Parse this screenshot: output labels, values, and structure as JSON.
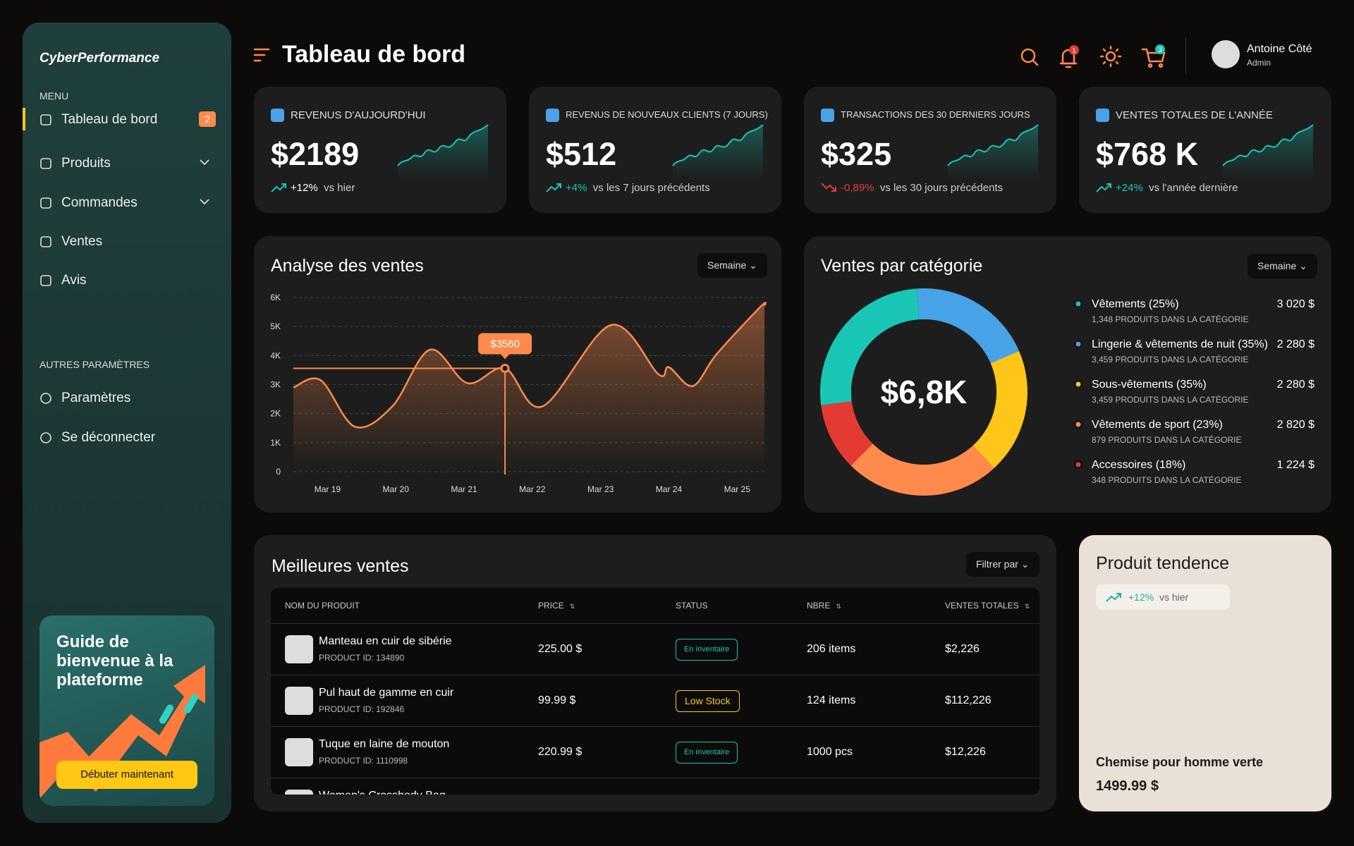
{
  "sidebar": {
    "brand": "CyberPerformance",
    "menu_label": "MENU",
    "menu": [
      {
        "label": "Tableau de bord",
        "badge": 2,
        "active": true
      },
      {
        "label": "Produits",
        "expandable": true
      },
      {
        "label": "Commandes",
        "expandable": true
      },
      {
        "label": "Ventes"
      },
      {
        "label": "Avis"
      }
    ],
    "settings_label": "AUTRES PARAMÈTRES",
    "settings": [
      "Paramètres",
      "Se déconnecter"
    ],
    "promo": {
      "title": "Guide de bienvenue à la plateforme",
      "button": "Débuter maintenant"
    }
  },
  "header": {
    "title": "Tableau de bord",
    "notifications": 1,
    "cart": 3,
    "user": {
      "name": "Antoine Côté",
      "role": "Admin"
    }
  },
  "kpis": [
    {
      "title": "REVENUS D'AUJOURD'HUI",
      "value": "$2189",
      "change": "+12%",
      "comparison": "vs hier",
      "trend": "up"
    },
    {
      "title": "REVENUS DE NOUVEAUX CLIENTS (7 JOURS)",
      "value": "$512",
      "change": "+4%",
      "comparison": "vs les 7 jours précédents",
      "trend": "up"
    },
    {
      "title": "TRANSACTIONS DES 30 DERNIERS JOURS",
      "value": "$325",
      "change": "-0,89%",
      "comparison": "vs les 30 jours précédents",
      "trend": "down"
    },
    {
      "title": "VENTES TOTALES DE L'ANNÉE",
      "value": "$768 K",
      "change": "+24%",
      "comparison": "vs l'année dernière",
      "trend": "up"
    }
  ],
  "sales_chart": {
    "type": "line",
    "title": "Analyse des ventes",
    "period": "Semaine",
    "color": "#ff8a4c",
    "x": [
      18.5,
      18.9,
      19.4,
      19.95,
      20.5,
      21.05,
      21.6,
      22.15,
      23.15,
      23.85,
      24.0,
      24.35,
      24.7,
      25.35,
      25.4
    ],
    "values": [
      2900,
      3150,
      1550,
      2250,
      4200,
      3050,
      3560,
      2250,
      5050,
      3350,
      3600,
      2950,
      4050,
      5700,
      5700
    ],
    "xlim": [
      18.5,
      25.4
    ],
    "xticks": [
      {
        "value": 19,
        "label": "Mar 19"
      },
      {
        "value": 20,
        "label": "Mar 20"
      },
      {
        "value": 21,
        "label": "Mar 21"
      },
      {
        "value": 22,
        "label": "Mar 22"
      },
      {
        "value": 23,
        "label": "Mar 23"
      },
      {
        "value": 24,
        "label": "Mar 24"
      },
      {
        "value": 25,
        "label": "Mar 25"
      }
    ],
    "ylim": [
      0,
      6000
    ],
    "yticks": [
      0,
      {
        "value": 1000,
        "label": "1K"
      },
      {
        "value": 2000,
        "label": "2K"
      },
      {
        "value": 3000,
        "label": "3K"
      },
      {
        "value": 4000,
        "label": "4K"
      },
      {
        "value": 5000,
        "label": "5K"
      },
      {
        "value": 6000,
        "label": "6K"
      }
    ],
    "grid": true,
    "annotation": {
      "x": 21.6,
      "y": 3560,
      "label": "$3560"
    }
  },
  "category_chart": {
    "type": "pie",
    "title": "Ventes par catégorie",
    "period": "Semaine",
    "center_label": "$6,8K",
    "categories": [
      "Vêtements (25%)",
      "Lingerie & vêtements de nuit (35%)",
      "Sous-vêtements (35%)",
      "Vêtements de sport (23%)",
      "Accessoires (18%)"
    ],
    "details": [
      "1,348  PRODUITS DANS LA CATÉGORIE",
      "3,459 PRODUITS DANS LA CATÉGORIE",
      "3,459 PRODUITS DANS LA CATÉGORIE",
      "879 PRODUITS DANS LA CATÉGORIE",
      "348 PRODUITS DANS LA CATÉGORIE"
    ],
    "values": [
      3020,
      2280,
      2280,
      2820,
      1224
    ],
    "value_labels": [
      "3 020 $",
      "2 280 $",
      "2 280 $",
      "2 820 $",
      "1 224 $"
    ],
    "colors": [
      "#19c6b5",
      "#47a3e6",
      "#ffc61a",
      "#ff8a4c",
      "#e33a34"
    ]
  },
  "best_sellers": {
    "title": "Meilleures ventes",
    "filter": "Filtrer par",
    "columns": [
      "NOM DU PRODUIT",
      "PRICE",
      "STATUS",
      "NBRE",
      "VENTES TOTALES"
    ],
    "sortable": [
      false,
      true,
      false,
      true,
      true
    ],
    "rows": [
      {
        "name": "Manteau en cuir de sibérie",
        "id": "PRODUCT ID: 134890",
        "price": "225.00 $",
        "status": "En inventaire",
        "status_tone": "ok",
        "qty": "206 items",
        "total": "$2,226"
      },
      {
        "name": "Pul haut de gamme en cuir",
        "id": "PRODUCT ID: 192846",
        "price": "99.99 $",
        "status": "Low Stock",
        "status_tone": "low",
        "qty": "124 items",
        "total": "$112,226"
      },
      {
        "name": "Tuque en laine de mouton",
        "id": "PRODUCT ID: 1110998",
        "price": "220.99 $",
        "status": "En inventaire",
        "status_tone": "ok",
        "qty": "1000 pcs",
        "total": "$12,226"
      },
      {
        "name": "Women's Crossbody Bag"
      }
    ]
  },
  "trending": {
    "title": "Produit tendence",
    "change": "+12%",
    "comparison": "vs hier",
    "product": "Chemise pour homme verte",
    "price": "1499.99 $"
  }
}
